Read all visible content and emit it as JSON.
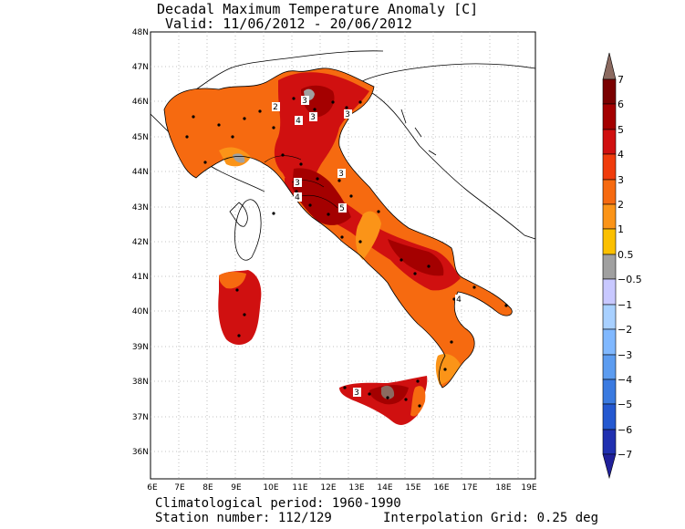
{
  "title": {
    "line1": "Decadal Maximum Temperature Anomaly [C]",
    "line2": " Valid: 11/06/2012 - 20/06/2012"
  },
  "footer": {
    "period": "Climatological period: 1960-1990",
    "stations": "Station number: 112/129",
    "grid": "Interpolation Grid: 0.25 deg"
  },
  "axes": {
    "lat_labels": [
      "48N",
      "47N",
      "46N",
      "45N",
      "44N",
      "43N",
      "42N",
      "41N",
      "40N",
      "39N",
      "38N",
      "37N",
      "36N"
    ],
    "lon_labels": [
      "6E",
      "7E",
      "8E",
      "9E",
      "10E",
      "11E",
      "12E",
      "13E",
      "14E",
      "15E",
      "16E",
      "17E",
      "18E",
      "19E"
    ]
  },
  "colorbar": {
    "labels": [
      "7",
      "6",
      "5",
      "4",
      "3",
      "2",
      "1",
      "0.5",
      "−0.5",
      "−1",
      "−2",
      "−3",
      "−4",
      "−5",
      "−6",
      "−7"
    ],
    "colors": [
      "#8b6a60",
      "#7a0000",
      "#a40000",
      "#d01010",
      "#f03c0c",
      "#f66a10",
      "#fb9418",
      "#fbc000",
      "#a0a0a0",
      "#c8c8ff",
      "#a8d0ff",
      "#80b8ff",
      "#5c9cf0",
      "#3a7ae0",
      "#2458d0",
      "#2030b0",
      "#20209a"
    ]
  },
  "contour_labels": [
    "2",
    "3",
    "4",
    "3",
    "3",
    "4",
    "3",
    "5",
    "3",
    "4",
    "3"
  ],
  "colors": {
    "background": "#ffffff",
    "sea_outline": "#000000",
    "grid": "#b0b0b0"
  }
}
